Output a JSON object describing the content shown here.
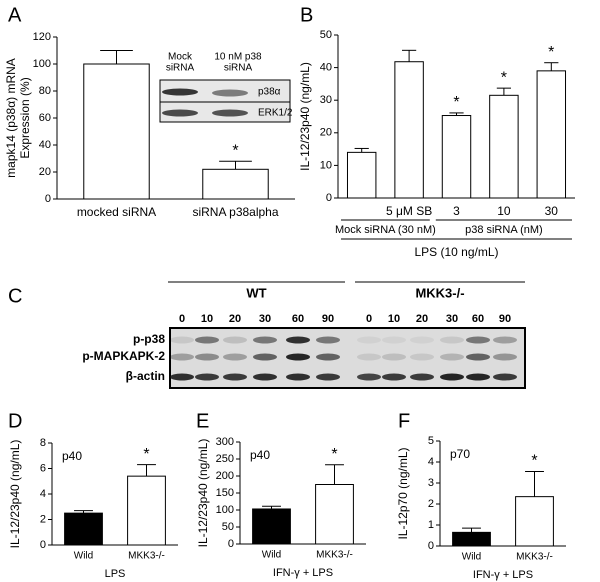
{
  "chart_data": [
    {
      "type": "bar",
      "panel": "A",
      "ylabel": [
        "mapk14 (p38α) mRNA",
        "Expression (%)"
      ],
      "categories": [
        "mocked siRNA",
        "siRNA p38alpha"
      ],
      "values": [
        100,
        22
      ],
      "errors": [
        10,
        6
      ],
      "significance": [
        null,
        "*"
      ],
      "colors": [
        "#ffffff",
        "#ffffff"
      ],
      "ylim": [
        0,
        120
      ],
      "yticks": [
        0,
        20,
        40,
        60,
        80,
        100,
        120
      ],
      "inset": {
        "columns": [
          [
            "Mock",
            "siRNA"
          ],
          [
            "10 nM p38",
            "siRNA"
          ]
        ],
        "rows": [
          "p38α",
          "ERK1/2"
        ]
      }
    },
    {
      "type": "bar",
      "panel": "B",
      "ylabel": "IL-12/23p40 (ng/mL)",
      "categories": [
        null,
        "5 μM SB",
        "3",
        "10",
        "30"
      ],
      "values": [
        14,
        41.8,
        25.3,
        31.5,
        39
      ],
      "errors": [
        1.2,
        3.5,
        0.8,
        2.2,
        2.5
      ],
      "significance": [
        null,
        null,
        "*",
        "*",
        "*"
      ],
      "colors": [
        "#ffffff",
        "#ffffff",
        "#ffffff",
        "#ffffff",
        "#ffffff"
      ],
      "groups": [
        "Mock siRNA (30 nM)",
        "p38 siRNA (nM)"
      ],
      "xlabel": "LPS (10 ng/mL)",
      "ylim": [
        0,
        50
      ],
      "yticks": [
        0,
        10,
        20,
        30,
        40,
        50
      ]
    },
    {
      "type": "bar",
      "panel": "D",
      "ylabel": "IL-12/23p40 (ng/mL)",
      "note": "p40",
      "xlabel": "LPS",
      "categories": [
        "Wild",
        "MKK3-/-"
      ],
      "values": [
        2.5,
        5.4
      ],
      "errors": [
        0.2,
        0.9
      ],
      "significance": [
        null,
        "*"
      ],
      "colors": [
        "#000000",
        "#ffffff"
      ],
      "ylim": [
        0,
        8
      ],
      "yticks": [
        0,
        2,
        4,
        6,
        8
      ]
    },
    {
      "type": "bar",
      "panel": "E",
      "ylabel": "IL-12/23p40 (ng/mL)",
      "note": "p40",
      "xlabel": "IFN-γ + LPS",
      "categories": [
        "Wild",
        "MKK3-/-"
      ],
      "values": [
        103,
        175
      ],
      "errors": [
        8,
        58
      ],
      "significance": [
        null,
        "*"
      ],
      "colors": [
        "#000000",
        "#ffffff"
      ],
      "ylim": [
        0,
        300
      ],
      "yticks": [
        0,
        50,
        100,
        150,
        200,
        250,
        300
      ]
    },
    {
      "type": "bar",
      "panel": "F",
      "ylabel": "IL-12p70 (ng/mL)",
      "note": "p70",
      "xlabel": "IFN-γ + LPS",
      "categories": [
        "Wild",
        "MKK3-/-"
      ],
      "values": [
        0.65,
        2.35
      ],
      "errors": [
        0.2,
        1.2
      ],
      "significance": [
        null,
        "*"
      ],
      "colors": [
        "#000000",
        "#ffffff"
      ],
      "ylim": [
        0,
        5
      ],
      "yticks": [
        0,
        1,
        2,
        3,
        4,
        5
      ]
    }
  ],
  "blot": {
    "panel": "C",
    "groups": [
      "WT",
      "MKK3-/-"
    ],
    "timepoints": [
      "0",
      "10",
      "20",
      "30",
      "60",
      "90",
      "0",
      "10",
      "20",
      "30",
      "60",
      "90"
    ],
    "rows": [
      "p-p38",
      "p-MAPKAPK-2",
      "β-actin"
    ]
  }
}
